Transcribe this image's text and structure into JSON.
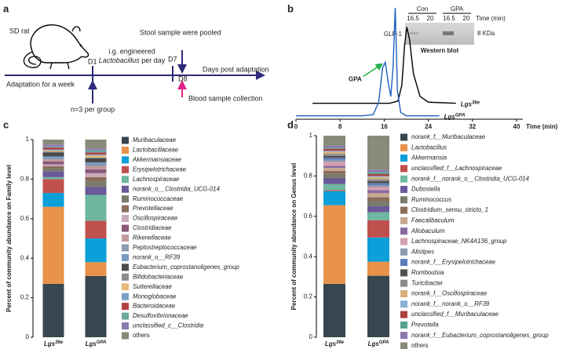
{
  "panel_labels": [
    "a",
    "b",
    "c",
    "d"
  ],
  "timeline": {
    "animal": "SD rat",
    "d1": "D1",
    "ig_line1": "i.g. engineered",
    "ig_line2_italic": "Lactobacillus",
    "ig_line2": "per day",
    "stool": "Stool sample were pooled",
    "d7": "D7",
    "d8": "D8",
    "days": "Days post adaptation",
    "adaptation": "Adaptation for a week",
    "n": "n=3 per group",
    "blood": "Blood sample collection"
  },
  "blot": {
    "groups": [
      "Con",
      "GPA"
    ],
    "times": [
      "16.5",
      "20",
      "16.5",
      "20"
    ],
    "time_label": "Time (min)",
    "protein": "GLP-1",
    "size": "8 KDa",
    "caption": "Western blot"
  },
  "chart_data": [
    {
      "type": "line",
      "x_label": "Time (min)",
      "xlim": [
        0,
        40
      ],
      "xticks": [
        0,
        8,
        16,
        24,
        32,
        40
      ],
      "ylim": [
        0,
        100
      ],
      "annotation": "GPA",
      "series": [
        {
          "name": "Lgs36e",
          "color": "#000000",
          "x": [
            3,
            17,
            18.5,
            19.2,
            19.7,
            20.1,
            20.6,
            21.3,
            22.5,
            24,
            29
          ],
          "values": [
            14,
            14,
            16,
            30,
            65,
            81,
            70,
            40,
            20,
            15,
            14
          ]
        },
        {
          "name": "LgsGPA",
          "color": "#1f5fbf",
          "x": [
            0,
            12,
            14,
            15,
            15.7,
            16.2,
            16.8,
            17.2,
            17.6,
            18,
            18.4,
            19,
            20,
            22,
            26
          ],
          "values": [
            3,
            3,
            4,
            15,
            45,
            50,
            30,
            20,
            45,
            98,
            25,
            6,
            3,
            3,
            3
          ]
        }
      ]
    },
    {
      "type": "bar",
      "stacked": true,
      "y_label": "Percent of community abundance on Family level",
      "categories": [
        "Lgs36e",
        "LgsGPA"
      ],
      "ylim": [
        0,
        1
      ],
      "yticks": [
        0,
        0.2,
        0.4,
        0.6,
        0.8,
        1
      ],
      "series": [
        {
          "name": "Muribaculaceae",
          "color": "#37474f",
          "values": [
            0.27,
            0.31
          ]
        },
        {
          "name": "Lactobacillaceae",
          "color": "#e8924a",
          "values": [
            0.39,
            0.07
          ]
        },
        {
          "name": "Akkermansiaceae",
          "color": "#0a9fd8",
          "values": [
            0.07,
            0.12
          ]
        },
        {
          "name": "Erysipelotrichaceae",
          "color": "#c0504d",
          "values": [
            0.07,
            0.09
          ]
        },
        {
          "name": "Lachnospiraceae",
          "color": "#6fb7a0",
          "values": [
            0.01,
            0.13
          ]
        },
        {
          "name": "norank_o__Clostridia_UCG-014",
          "color": "#6a5a9a",
          "values": [
            0.03,
            0.04
          ]
        },
        {
          "name": "Ruminococcaceae",
          "color": "#7b7b6b",
          "values": [
            0.015,
            0.03
          ]
        },
        {
          "name": "Prevotellaceae",
          "color": "#8c6d5a",
          "values": [
            0.01,
            0.02
          ]
        },
        {
          "name": "Oscillospiraceae",
          "color": "#c8a8b8",
          "values": [
            0.01,
            0.02
          ]
        },
        {
          "name": "Clostridiaceae",
          "color": "#8a5a7a",
          "values": [
            0.015,
            0.02
          ]
        },
        {
          "name": "Rikenellaceae",
          "color": "#c09a9a",
          "values": [
            0.01,
            0.015
          ]
        },
        {
          "name": "Peptostreptococcaceae",
          "color": "#8a9ab0",
          "values": [
            0.005,
            0.01
          ]
        },
        {
          "name": "norank_o__RF39",
          "color": "#7a9ac0",
          "values": [
            0.01,
            0.01
          ]
        },
        {
          "name": "Eubacterium_coprostanoligenes_group",
          "color": "#4a4a4a",
          "values": [
            0.02,
            0.02
          ]
        },
        {
          "name": "Bifidobacteriaceae",
          "color": "#8a8a8a",
          "values": [
            0.005,
            0.005
          ]
        },
        {
          "name": "Sutterellaceae",
          "color": "#e8b87a",
          "values": [
            0.005,
            0.01
          ]
        },
        {
          "name": "Monoglobaceae",
          "color": "#7aa0c8",
          "values": [
            0.005,
            0.005
          ]
        },
        {
          "name": "Bacteroidaceae",
          "color": "#b04040",
          "values": [
            0.01,
            0.01
          ]
        },
        {
          "name": "Desulfovibrionaceae",
          "color": "#6aa89a",
          "values": [
            0.005,
            0.01
          ]
        },
        {
          "name": "unclassified_c__Clostridia",
          "color": "#8a7ab0",
          "values": [
            0.01,
            0.01
          ]
        },
        {
          "name": "others",
          "color": "#8a8a7a",
          "values": [
            0.025,
            0.045
          ]
        }
      ]
    },
    {
      "type": "bar",
      "stacked": true,
      "y_label": "Percent of community abundance on Genus level",
      "categories": [
        "Lgs36e",
        "LgsGPA"
      ],
      "ylim": [
        0,
        1
      ],
      "yticks": [
        0,
        0.2,
        0.4,
        0.6,
        0.8,
        1
      ],
      "series": [
        {
          "name": "norank_f__Muribaculaceae",
          "color": "#37474f",
          "values": [
            0.265,
            0.305
          ]
        },
        {
          "name": "Lactobacillus",
          "color": "#e8924a",
          "values": [
            0.39,
            0.07
          ]
        },
        {
          "name": "Akkermansia",
          "color": "#0a9fd8",
          "values": [
            0.07,
            0.12
          ]
        },
        {
          "name": "unclassified_f__Lachnospiraceae",
          "color": "#c0504d",
          "values": [
            0.005,
            0.085
          ]
        },
        {
          "name": "norank_f__norank_o__Clostridia_UCG-014",
          "color": "#6fb7a0",
          "values": [
            0.03,
            0.04
          ]
        },
        {
          "name": "Dubosiella",
          "color": "#6a5a9a",
          "values": [
            0.03,
            0.03
          ]
        },
        {
          "name": "Ruminococcus",
          "color": "#7b7b6b",
          "values": [
            0.02,
            0.025
          ]
        },
        {
          "name": "Clostridium_sensu_stricto_1",
          "color": "#8c6d5a",
          "values": [
            0.015,
            0.02
          ]
        },
        {
          "name": "Faecalibaculum",
          "color": "#c8a890",
          "values": [
            0.015,
            0.02
          ]
        },
        {
          "name": "Allobaculum",
          "color": "#8a6aa0",
          "values": [
            0.01,
            0.015
          ]
        },
        {
          "name": "Lachnospiraceae_NK4A136_group",
          "color": "#d4a0b0",
          "values": [
            0.02,
            0.015
          ]
        },
        {
          "name": "Alistipes",
          "color": "#8a9ab0",
          "values": [
            0.01,
            0.01
          ]
        },
        {
          "name": "norank_f__Erysipelotrichaceae",
          "color": "#5a7ab8",
          "values": [
            0.01,
            0.01
          ]
        },
        {
          "name": "Romboutsia",
          "color": "#505050",
          "values": [
            0.01,
            0.01
          ]
        },
        {
          "name": "Turicibacter",
          "color": "#8a8a8a",
          "values": [
            0.01,
            0.01
          ]
        },
        {
          "name": "norank_f__Oscillospiraceae",
          "color": "#d8b07a",
          "values": [
            0.01,
            0.01
          ]
        },
        {
          "name": "norank_f__norank_o__RF39",
          "color": "#8ab0d8",
          "values": [
            0.005,
            0.005
          ]
        },
        {
          "name": "unclassified_f__Muribaculaceae",
          "color": "#a84040",
          "values": [
            0.01,
            0.01
          ]
        },
        {
          "name": "Prevotella",
          "color": "#5aa090",
          "values": [
            0.005,
            0.01
          ]
        },
        {
          "name": "norank_f__Eubacterium_coprostanoligenes_group",
          "color": "#8a7ab0",
          "values": [
            0.01,
            0.01
          ]
        },
        {
          "name": "others",
          "color": "#8a8a7a",
          "values": [
            0.05,
            0.17
          ]
        }
      ]
    }
  ]
}
